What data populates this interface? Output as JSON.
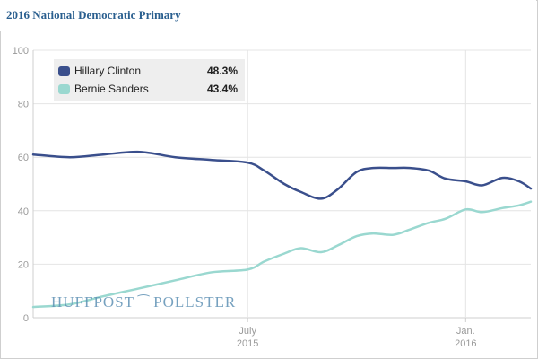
{
  "header": {
    "title": "2016 National Democratic Primary"
  },
  "watermark": {
    "left": "HUFFPOST",
    "right": "POLLSTER",
    "glyph": "bird-icon"
  },
  "colors": {
    "clinton": "#3a4f8c",
    "sanders": "#9ad8d0",
    "grid": "#e4e4e4",
    "axis": "#cfcfcf"
  },
  "chart_data": {
    "type": "line",
    "title": "2016 National Democratic Primary",
    "xlabel": "",
    "ylabel": "",
    "ylim": [
      0,
      100
    ],
    "yticks": [
      0,
      20,
      40,
      60,
      80,
      100
    ],
    "xlim": [
      "2015-01-01",
      "2016-02-25"
    ],
    "xticks": [
      {
        "date": "2015-07-01",
        "label": "July",
        "sublabel": "2015"
      },
      {
        "date": "2016-01-01",
        "label": "Jan.",
        "sublabel": "2016"
      }
    ],
    "grid": true,
    "legend": {
      "placement": "top-left"
    },
    "x": [
      "2015-01-01",
      "2015-02-01",
      "2015-03-01",
      "2015-04-01",
      "2015-05-01",
      "2015-06-01",
      "2015-07-01",
      "2015-07-15",
      "2015-08-01",
      "2015-08-15",
      "2015-09-01",
      "2015-09-15",
      "2015-10-01",
      "2015-10-15",
      "2015-11-01",
      "2015-11-15",
      "2015-12-01",
      "2015-12-15",
      "2016-01-01",
      "2016-01-15",
      "2016-02-01",
      "2016-02-15",
      "2016-02-25"
    ],
    "series": [
      {
        "name": "Hillary Clinton",
        "current_label": "48.3%",
        "color": "#3a4f8c",
        "values": [
          61,
          60,
          61,
          62,
          60,
          59,
          58,
          55,
          50,
          47,
          44.5,
          48,
          54.5,
          56,
          56,
          56,
          55,
          52,
          51,
          49.5,
          52.3,
          51,
          48.3
        ]
      },
      {
        "name": "Bernie Sanders",
        "current_label": "43.4%",
        "color": "#9ad8d0",
        "values": [
          4,
          5,
          8,
          11,
          14,
          17,
          18,
          21,
          24,
          26,
          24.5,
          27,
          30.5,
          31.5,
          31,
          33,
          35.5,
          37,
          40.5,
          39.5,
          41,
          42,
          43.4
        ]
      }
    ]
  }
}
